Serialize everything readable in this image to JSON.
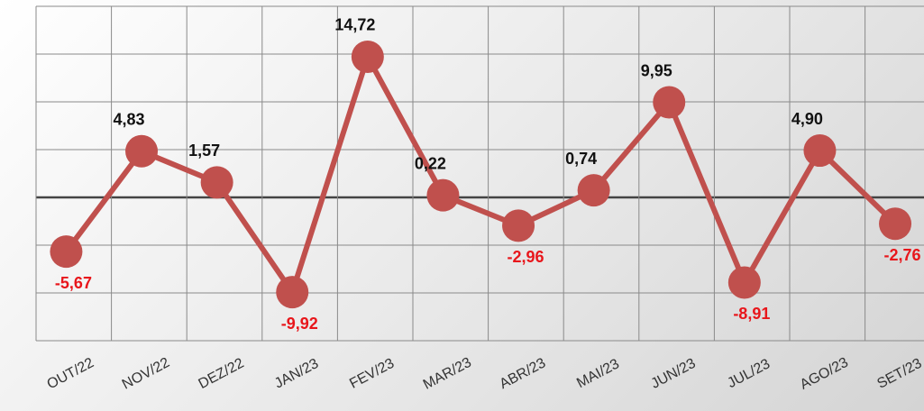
{
  "chart_data": {
    "type": "line",
    "categories": [
      "OUT/22",
      "NOV/22",
      "DEZ/22",
      "JAN/23",
      "FEV/23",
      "MAR/23",
      "ABR/23",
      "MAI/23",
      "JUN/23",
      "JUL/23",
      "AGO/23",
      "SET/23"
    ],
    "values": [
      -5.67,
      4.83,
      1.57,
      -9.92,
      14.72,
      0.22,
      -2.96,
      0.74,
      9.95,
      -8.91,
      4.9,
      -2.76
    ],
    "value_labels": [
      "-5,67",
      "4,83",
      "1,57",
      "-9,92",
      "14,72",
      "0,22",
      "-2,96",
      "0,74",
      "9,95",
      "-8,91",
      "4,90",
      "-2,76"
    ],
    "color": "#c0504d",
    "positive_label_color": "#111111",
    "negative_label_color": "#e8161b",
    "ylim": [
      -15,
      20
    ],
    "yticks": [
      -15,
      -10,
      -5,
      0,
      5,
      10,
      15,
      20
    ],
    "grid": true
  }
}
